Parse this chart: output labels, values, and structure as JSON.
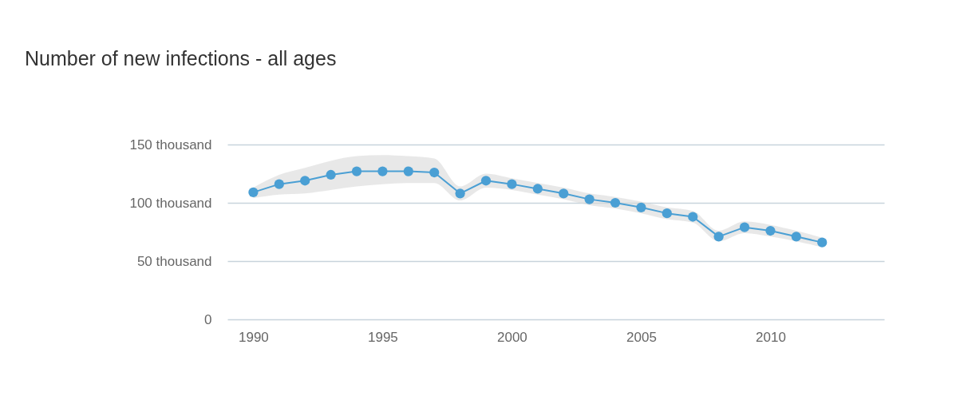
{
  "chart_data": {
    "type": "line",
    "title": "Number of new infections - all ages",
    "x": [
      1990,
      1991,
      1992,
      1993,
      1994,
      1995,
      1996,
      1997,
      1998,
      1999,
      2000,
      2001,
      2002,
      2003,
      2004,
      2005,
      2006,
      2007,
      2008,
      2009,
      2010,
      2011,
      2012
    ],
    "series": [
      {
        "color": "#4a9fd4",
        "values": [
          109000,
          116000,
          119000,
          124000,
          127000,
          127000,
          127000,
          126000,
          108000,
          119000,
          116000,
          112000,
          108000,
          103000,
          100000,
          96000,
          91000,
          88000,
          71000,
          79000,
          76000,
          71000,
          66000
        ],
        "lower": [
          104000,
          107000,
          108000,
          111000,
          114000,
          116000,
          117000,
          117000,
          102000,
          113000,
          111000,
          107000,
          103000,
          98000,
          95000,
          91000,
          86000,
          83000,
          67000,
          74000,
          71000,
          67000,
          62000
        ],
        "upper": [
          113000,
          124000,
          130000,
          136000,
          140000,
          141000,
          140000,
          138000,
          114000,
          125000,
          121000,
          117000,
          113000,
          108000,
          105000,
          101000,
          96000,
          93000,
          76000,
          84000,
          81000,
          76000,
          70000
        ]
      }
    ],
    "xlim": [
      1989,
      2014.4
    ],
    "xticks": [
      1990,
      1995,
      2000,
      2005,
      2010
    ],
    "ylim": [
      0,
      150000
    ],
    "yticks": [
      0,
      {
        "value": 50000,
        "label": "50 thousand"
      },
      {
        "value": 100000,
        "label": "100 thousand"
      },
      {
        "value": 150000,
        "label": "150 thousand"
      }
    ],
    "grid": "y",
    "marker": "circle",
    "line_style": "solid"
  }
}
